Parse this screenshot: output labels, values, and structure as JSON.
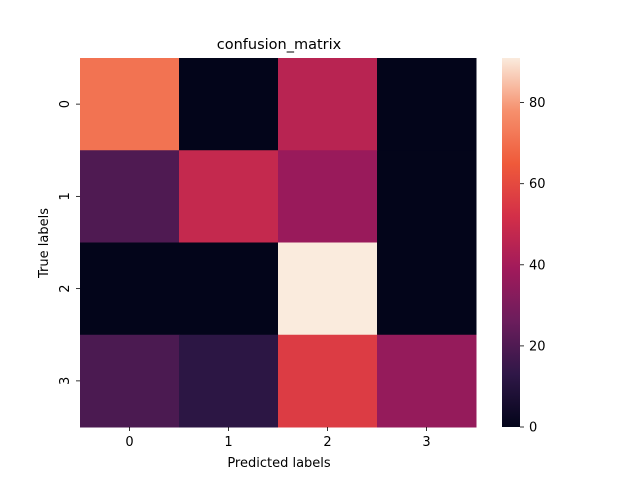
{
  "chart_data": {
    "type": "heatmap",
    "title": "confusion_matrix",
    "xlabel": "Predicted labels",
    "ylabel": "True labels",
    "x_categories": [
      "0",
      "1",
      "2",
      "3"
    ],
    "y_categories": [
      "0",
      "1",
      "2",
      "3"
    ],
    "values": [
      [
        71,
        0,
        45,
        0
      ],
      [
        20,
        48,
        37,
        0
      ],
      [
        0,
        0,
        91,
        0
      ],
      [
        19,
        12,
        56,
        36
      ]
    ],
    "colorbar": {
      "range": [
        0,
        91
      ],
      "ticks": [
        0,
        20,
        40,
        60,
        80
      ]
    },
    "colormap": [
      "#03051a",
      "#2f1747",
      "#6b1d5c",
      "#a11a5b",
      "#d32f48",
      "#ef5a3a",
      "#f6906d",
      "#faebdd"
    ]
  }
}
